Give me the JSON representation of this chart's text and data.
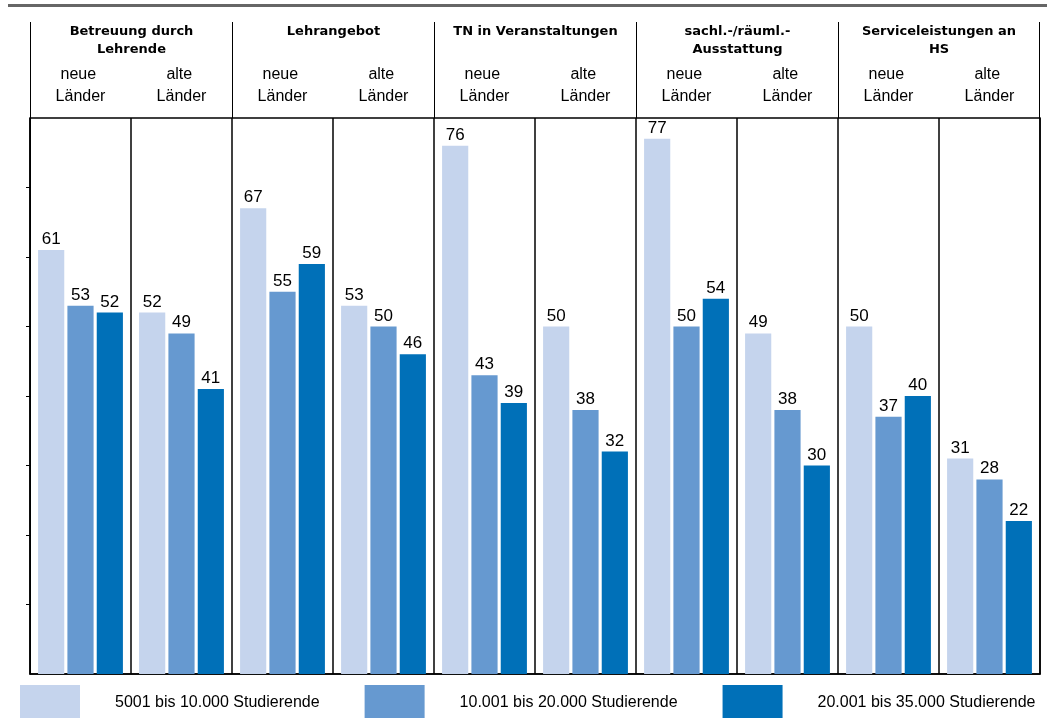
{
  "chart_data": {
    "type": "bar",
    "categories": [
      "neue Länder",
      "alte Länder",
      "neue Länder",
      "alte Länder",
      "neue Länder",
      "alte Länder",
      "neue Länder",
      "alte Länder",
      "neue Länder",
      "alte Länder"
    ],
    "annotations": [
      "Betreuung durch Lehrende",
      "Lehrangebot",
      "TN in Veranstaltungen",
      "sachl.-/räuml.- Ausstattung",
      "Serviceleistungen an HS"
    ],
    "series": [
      {
        "name": "5001 bis 10.000 Studierende",
        "color": "#c5d4ed",
        "values": [
          61,
          52,
          67,
          53,
          76,
          50,
          77,
          49,
          50,
          31
        ]
      },
      {
        "name": "10.001 bis 20.000 Studierende",
        "color": "#6699d0",
        "values": [
          53,
          49,
          55,
          50,
          43,
          38,
          50,
          38,
          37,
          28
        ]
      },
      {
        "name": "20.001 bis 35.000 Studierende",
        "color": "#0070b8",
        "values": [
          52,
          41,
          59,
          46,
          39,
          32,
          54,
          30,
          40,
          22
        ]
      }
    ],
    "ylim": [
      0,
      80
    ],
    "yticks": [
      {
        "value": 10,
        "label": null
      },
      {
        "value": 20,
        "label": null
      },
      {
        "value": 30,
        "label": null
      },
      {
        "value": 40,
        "label": null
      },
      {
        "value": 50,
        "label": null
      },
      {
        "value": 60,
        "label": null
      },
      {
        "value": 70,
        "label": null
      }
    ],
    "data_labels": true,
    "grid": false,
    "legend": "bottom",
    "tick_labels": "x"
  }
}
